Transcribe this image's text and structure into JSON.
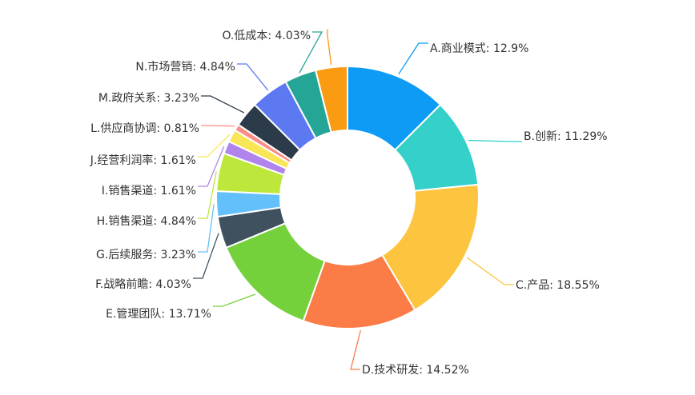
{
  "chart_data": {
    "type": "pie",
    "variant": "donut",
    "title": "",
    "legend": "none",
    "slices": [
      {
        "label": "A.商业模式",
        "percent_label": "12.9%",
        "value": 12.9,
        "color": "#0d9bf5"
      },
      {
        "label": "B.创新",
        "percent_label": "11.29%",
        "value": 11.29,
        "color": "#35d0c9"
      },
      {
        "label": "C.产品",
        "percent_label": "18.55%",
        "value": 18.55,
        "color": "#fdc43f"
      },
      {
        "label": "D.技术研发",
        "percent_label": "14.52%",
        "value": 14.52,
        "color": "#fc7c48"
      },
      {
        "label": "E.管理团队",
        "percent_label": "13.71%",
        "value": 13.71,
        "color": "#74d13c"
      },
      {
        "label": "F.战略前瞻",
        "percent_label": "4.03%",
        "value": 4.03,
        "color": "#3f515f"
      },
      {
        "label": "G.后续服务",
        "percent_label": "3.23%",
        "value": 3.23,
        "color": "#64c0fb"
      },
      {
        "label": "H.销售渠道",
        "percent_label": "4.84%",
        "value": 4.84,
        "color": "#bde83b"
      },
      {
        "label": "I.销售渠道",
        "percent_label": "1.61%",
        "value": 1.61,
        "color": "#b084ec"
      },
      {
        "label": "J.经营利润率",
        "percent_label": "1.61%",
        "value": 1.61,
        "color": "#f8e656"
      },
      {
        "label": "L.供应商协调",
        "percent_label": "0.81%",
        "value": 0.81,
        "color": "#fb8c88"
      },
      {
        "label": "M.政府关系",
        "percent_label": "3.23%",
        "value": 3.23,
        "color": "#2c3b4a"
      },
      {
        "label": "N.市场营销",
        "percent_label": "4.84%",
        "value": 4.84,
        "color": "#5d79f2"
      },
      {
        "label": "O.低成本",
        "percent_label": "4.03%",
        "value": 4.03,
        "color": "#25a595"
      },
      {
        "label": "",
        "percent_label": "",
        "value": 4.03,
        "color": "#fb9b11"
      }
    ]
  }
}
